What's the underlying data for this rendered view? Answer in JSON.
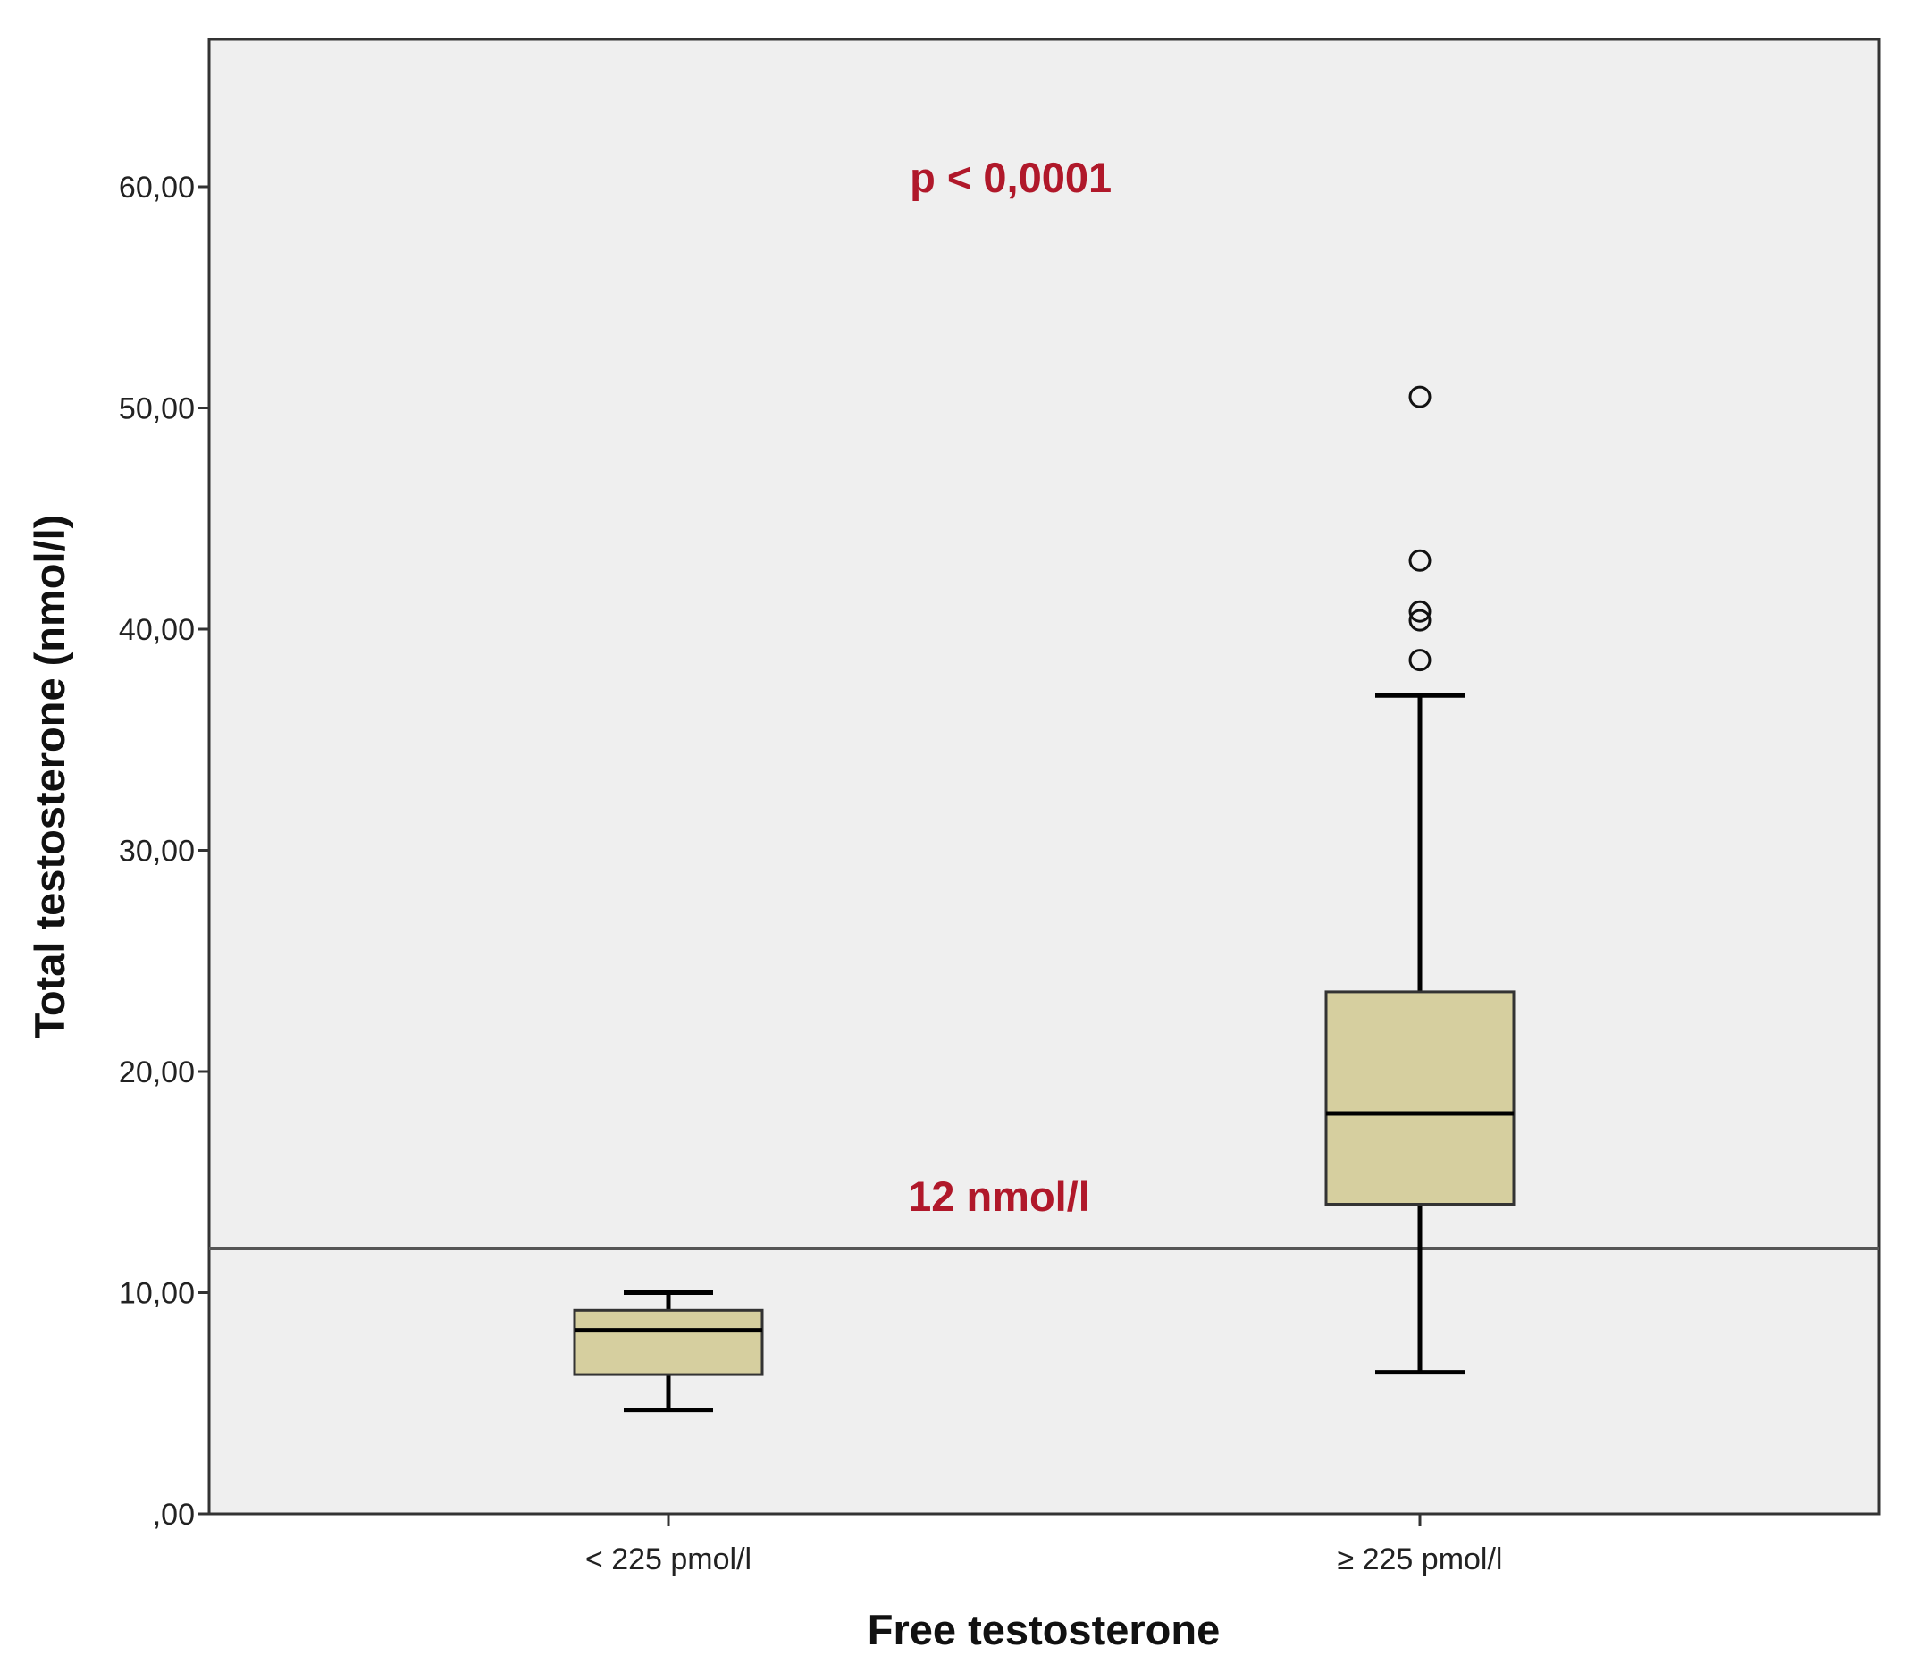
{
  "chart_data": {
    "type": "box",
    "xlabel": "Free testosterone",
    "ylabel": "Total testosterone (nmol/l)",
    "ylim": [
      0,
      66.5
    ],
    "yticks": [
      0,
      10,
      20,
      30,
      40,
      50,
      60
    ],
    "ytick_labels": [
      ",00",
      "10,00",
      "20,00",
      "30,00",
      "40,00",
      "50,00",
      "60,00"
    ],
    "grid": false,
    "categories": [
      "< 225 pmol/l",
      "≥ 225 pmol/l"
    ],
    "boxes": [
      {
        "category": "< 225 pmol/l",
        "whisker_low": 4.7,
        "q1": 6.3,
        "median": 8.3,
        "q3": 9.2,
        "whisker_high": 10.0,
        "outliers": []
      },
      {
        "category": "≥ 225 pmol/l",
        "whisker_low": 6.4,
        "q1": 14.0,
        "median": 18.1,
        "q3": 23.6,
        "whisker_high": 37.0,
        "outliers": [
          38.6,
          40.4,
          40.8,
          43.1,
          50.5
        ]
      }
    ],
    "reference_line": {
      "y": 12,
      "label": "12 nmol/l"
    },
    "annotation": {
      "text": "p < 0,0001",
      "x_position": 0.48,
      "y": 60.4
    },
    "colors": {
      "plot_background": "#efefef",
      "box_fill": "#d6cf9f",
      "annotation": "#b0182a",
      "reference_line": "#555555"
    }
  }
}
